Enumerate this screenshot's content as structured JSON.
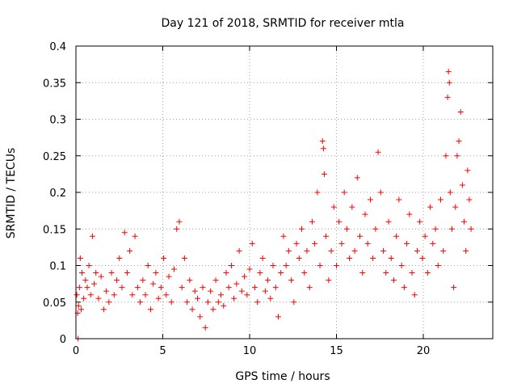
{
  "chart_data": {
    "type": "scatter",
    "title": "Day 121 of 2018, SRMTID for receiver mtla",
    "xlabel": "GPS time / hours",
    "ylabel": "SRMTID / TECUs",
    "xlim": [
      0,
      24
    ],
    "ylim": [
      0,
      0.4
    ],
    "x_ticks": [
      0,
      5,
      10,
      15,
      20
    ],
    "y_ticks": [
      0,
      0.05,
      0.1,
      0.15,
      0.2,
      0.25,
      0.3,
      0.35,
      0.4
    ],
    "grid": true,
    "legend": "none",
    "marker": "+",
    "series": [
      {
        "name": "mtla",
        "color": "#ff0000",
        "points": [
          [
            0.05,
            0.06
          ],
          [
            0.1,
            0.035
          ],
          [
            0.12,
            0.0
          ],
          [
            0.15,
            0.045
          ],
          [
            0.2,
            0.07
          ],
          [
            0.25,
            0.11
          ],
          [
            0.3,
            0.04
          ],
          [
            0.35,
            0.09
          ],
          [
            0.45,
            0.055
          ],
          [
            0.55,
            0.08
          ],
          [
            0.65,
            0.07
          ],
          [
            0.75,
            0.1
          ],
          [
            0.85,
            0.06
          ],
          [
            0.95,
            0.14
          ],
          [
            1.05,
            0.075
          ],
          [
            1.15,
            0.09
          ],
          [
            1.3,
            0.055
          ],
          [
            1.45,
            0.085
          ],
          [
            1.6,
            0.04
          ],
          [
            1.75,
            0.065
          ],
          [
            1.9,
            0.05
          ],
          [
            2.05,
            0.09
          ],
          [
            2.2,
            0.06
          ],
          [
            2.35,
            0.08
          ],
          [
            2.5,
            0.11
          ],
          [
            2.65,
            0.07
          ],
          [
            2.8,
            0.145
          ],
          [
            2.95,
            0.09
          ],
          [
            3.1,
            0.12
          ],
          [
            3.25,
            0.06
          ],
          [
            3.4,
            0.14
          ],
          [
            3.55,
            0.07
          ],
          [
            3.7,
            0.05
          ],
          [
            3.85,
            0.08
          ],
          [
            4.0,
            0.06
          ],
          [
            4.15,
            0.1
          ],
          [
            4.3,
            0.04
          ],
          [
            4.45,
            0.075
          ],
          [
            4.6,
            0.09
          ],
          [
            4.75,
            0.055
          ],
          [
            4.9,
            0.07
          ],
          [
            5.05,
            0.11
          ],
          [
            5.2,
            0.06
          ],
          [
            5.35,
            0.085
          ],
          [
            5.5,
            0.05
          ],
          [
            5.65,
            0.095
          ],
          [
            5.8,
            0.15
          ],
          [
            5.95,
            0.16
          ],
          [
            6.1,
            0.07
          ],
          [
            6.25,
            0.11
          ],
          [
            6.4,
            0.05
          ],
          [
            6.55,
            0.08
          ],
          [
            6.7,
            0.04
          ],
          [
            6.85,
            0.065
          ],
          [
            7.0,
            0.055
          ],
          [
            7.15,
            0.03
          ],
          [
            7.3,
            0.07
          ],
          [
            7.45,
            0.015
          ],
          [
            7.6,
            0.05
          ],
          [
            7.75,
            0.065
          ],
          [
            7.9,
            0.04
          ],
          [
            8.05,
            0.08
          ],
          [
            8.2,
            0.05
          ],
          [
            8.35,
            0.06
          ],
          [
            8.5,
            0.045
          ],
          [
            8.65,
            0.09
          ],
          [
            8.8,
            0.07
          ],
          [
            8.95,
            0.1
          ],
          [
            9.1,
            0.055
          ],
          [
            9.25,
            0.075
          ],
          [
            9.4,
            0.12
          ],
          [
            9.55,
            0.065
          ],
          [
            9.7,
            0.085
          ],
          [
            9.85,
            0.06
          ],
          [
            10.0,
            0.095
          ],
          [
            10.15,
            0.13
          ],
          [
            10.3,
            0.07
          ],
          [
            10.45,
            0.05
          ],
          [
            10.6,
            0.09
          ],
          [
            10.75,
            0.11
          ],
          [
            10.9,
            0.065
          ],
          [
            11.05,
            0.08
          ],
          [
            11.2,
            0.055
          ],
          [
            11.35,
            0.1
          ],
          [
            11.5,
            0.07
          ],
          [
            11.65,
            0.03
          ],
          [
            11.8,
            0.09
          ],
          [
            11.95,
            0.14
          ],
          [
            12.1,
            0.1
          ],
          [
            12.25,
            0.12
          ],
          [
            12.4,
            0.08
          ],
          [
            12.55,
            0.05
          ],
          [
            12.7,
            0.13
          ],
          [
            12.85,
            0.11
          ],
          [
            13.0,
            0.15
          ],
          [
            13.15,
            0.09
          ],
          [
            13.3,
            0.12
          ],
          [
            13.45,
            0.07
          ],
          [
            13.6,
            0.16
          ],
          [
            13.75,
            0.13
          ],
          [
            13.9,
            0.2
          ],
          [
            14.05,
            0.1
          ],
          [
            14.2,
            0.27
          ],
          [
            14.25,
            0.26
          ],
          [
            14.3,
            0.225
          ],
          [
            14.4,
            0.14
          ],
          [
            14.55,
            0.08
          ],
          [
            14.7,
            0.12
          ],
          [
            14.85,
            0.18
          ],
          [
            15.0,
            0.1
          ],
          [
            15.15,
            0.16
          ],
          [
            15.3,
            0.13
          ],
          [
            15.45,
            0.2
          ],
          [
            15.6,
            0.15
          ],
          [
            15.75,
            0.11
          ],
          [
            15.9,
            0.18
          ],
          [
            16.05,
            0.12
          ],
          [
            16.2,
            0.22
          ],
          [
            16.35,
            0.14
          ],
          [
            16.5,
            0.09
          ],
          [
            16.65,
            0.17
          ],
          [
            16.8,
            0.13
          ],
          [
            16.95,
            0.19
          ],
          [
            17.1,
            0.11
          ],
          [
            17.25,
            0.15
          ],
          [
            17.4,
            0.255
          ],
          [
            17.55,
            0.2
          ],
          [
            17.7,
            0.12
          ],
          [
            17.85,
            0.09
          ],
          [
            18.0,
            0.16
          ],
          [
            18.15,
            0.11
          ],
          [
            18.3,
            0.08
          ],
          [
            18.45,
            0.14
          ],
          [
            18.6,
            0.19
          ],
          [
            18.75,
            0.1
          ],
          [
            18.9,
            0.07
          ],
          [
            19.05,
            0.13
          ],
          [
            19.2,
            0.17
          ],
          [
            19.35,
            0.09
          ],
          [
            19.5,
            0.06
          ],
          [
            19.65,
            0.12
          ],
          [
            19.8,
            0.16
          ],
          [
            19.95,
            0.11
          ],
          [
            20.1,
            0.14
          ],
          [
            20.25,
            0.09
          ],
          [
            20.4,
            0.18
          ],
          [
            20.55,
            0.13
          ],
          [
            20.7,
            0.15
          ],
          [
            20.85,
            0.1
          ],
          [
            21.0,
            0.19
          ],
          [
            21.15,
            0.12
          ],
          [
            21.3,
            0.25
          ],
          [
            21.4,
            0.33
          ],
          [
            21.45,
            0.365
          ],
          [
            21.5,
            0.35
          ],
          [
            21.55,
            0.2
          ],
          [
            21.65,
            0.15
          ],
          [
            21.75,
            0.07
          ],
          [
            21.85,
            0.18
          ],
          [
            21.95,
            0.25
          ],
          [
            22.05,
            0.27
          ],
          [
            22.15,
            0.31
          ],
          [
            22.25,
            0.21
          ],
          [
            22.35,
            0.16
          ],
          [
            22.45,
            0.12
          ],
          [
            22.55,
            0.23
          ],
          [
            22.65,
            0.19
          ],
          [
            22.75,
            0.15
          ]
        ]
      }
    ]
  }
}
